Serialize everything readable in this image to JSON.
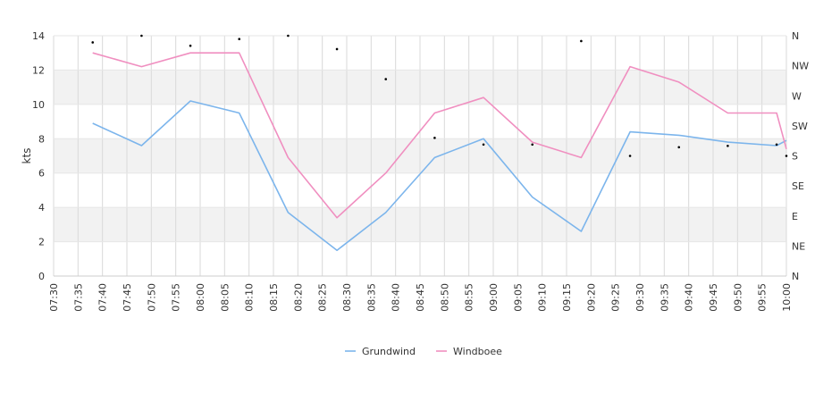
{
  "chart_data": {
    "type": "line",
    "ylabel": "kts",
    "ylim": [
      0,
      14
    ],
    "yticks": [
      0,
      2,
      4,
      6,
      8,
      10,
      12,
      14
    ],
    "x_range": [
      "07:30",
      "10:00"
    ],
    "x_tick_labels": [
      "07:30",
      "07:35",
      "07:40",
      "07:45",
      "07:50",
      "07:55",
      "08:00",
      "08:05",
      "08:10",
      "08:15",
      "08:20",
      "08:25",
      "08:30",
      "08:35",
      "08:40",
      "08:45",
      "08:50",
      "08:55",
      "09:00",
      "09:05",
      "09:10",
      "09:15",
      "09:20",
      "09:25",
      "09:30",
      "09:35",
      "09:40",
      "09:45",
      "09:50",
      "09:55",
      "10:00"
    ],
    "right_axis": {
      "labels": [
        "N",
        "NE",
        "E",
        "SE",
        "S",
        "SW",
        "W",
        "NW",
        "N"
      ],
      "range_deg": [
        0,
        360
      ]
    },
    "legend_position": "bottom-center",
    "series": [
      {
        "name": "Grundwind",
        "color": "#7cb5ec",
        "x": [
          "07:38",
          "07:48",
          "07:58",
          "08:08",
          "08:18",
          "08:28",
          "08:38",
          "08:48",
          "08:58",
          "09:08",
          "09:18",
          "09:28",
          "09:38",
          "09:48",
          "09:58",
          "10:00"
        ],
        "values": [
          8.9,
          7.6,
          10.2,
          9.5,
          3.7,
          1.5,
          3.7,
          6.9,
          8.0,
          4.6,
          2.6,
          8.4,
          8.2,
          7.8,
          7.6,
          7.9
        ]
      },
      {
        "name": "Windboee",
        "color": "#f08fc0",
        "x": [
          "07:38",
          "07:48",
          "07:58",
          "08:08",
          "08:18",
          "08:28",
          "08:38",
          "08:48",
          "08:58",
          "09:08",
          "09:18",
          "09:28",
          "09:38",
          "09:48",
          "09:58",
          "10:00"
        ],
        "values": [
          13.0,
          12.2,
          13.0,
          13.0,
          6.9,
          3.4,
          6.0,
          9.5,
          10.4,
          7.8,
          6.9,
          12.2,
          11.3,
          9.5,
          9.5,
          7.4
        ]
      }
    ],
    "direction_points": {
      "x": [
        "07:38",
        "07:48",
        "07:58",
        "08:08",
        "08:18",
        "08:28",
        "08:38",
        "08:48",
        "08:58",
        "09:08",
        "09:18",
        "09:28",
        "09:38",
        "09:48",
        "09:58",
        "10:00"
      ],
      "deg": [
        350,
        360,
        345,
        355,
        360,
        340,
        295,
        207,
        197,
        197,
        352,
        180,
        193,
        195,
        197,
        180
      ]
    }
  }
}
